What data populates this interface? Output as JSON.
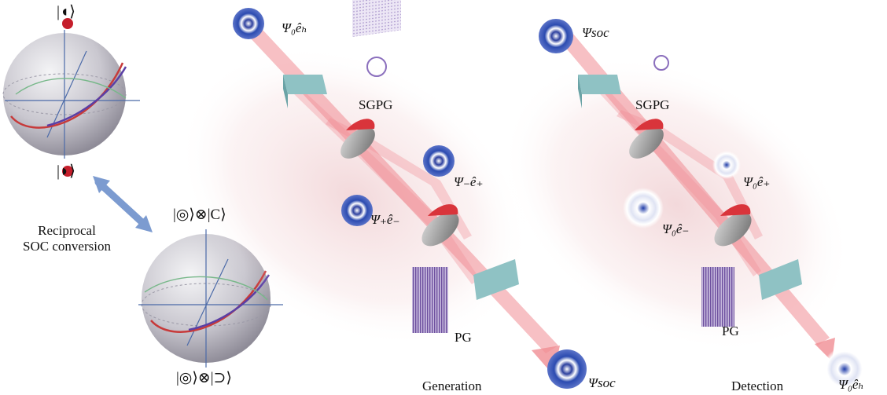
{
  "bloch_top": {
    "north": "|◖⟩",
    "south": "|◗⟩"
  },
  "bloch_bottom": {
    "north": "|◎⟩⊗|C⟩",
    "south": "|◎⟩⊗|⊃⟩"
  },
  "conversion": {
    "line1": "Reciprocal",
    "line2": "SOC conversion"
  },
  "generation": {
    "input": "Ψ₀êₕ",
    "grating_top": "SGPG",
    "beam_plus": "Ψ₋ê₊",
    "beam_minus": "Ψ₊ê₋",
    "grating_bottom": "PG",
    "output": "Ψsoc",
    "caption": "Generation"
  },
  "detection": {
    "input": "Ψsoc",
    "grating_top": "SGPG",
    "beam_plus": "Ψ₀ê₊",
    "beam_minus": "Ψ₀ê₋",
    "grating_bottom": "PG",
    "output": "Ψ₀êₕ",
    "caption": "Detection"
  }
}
